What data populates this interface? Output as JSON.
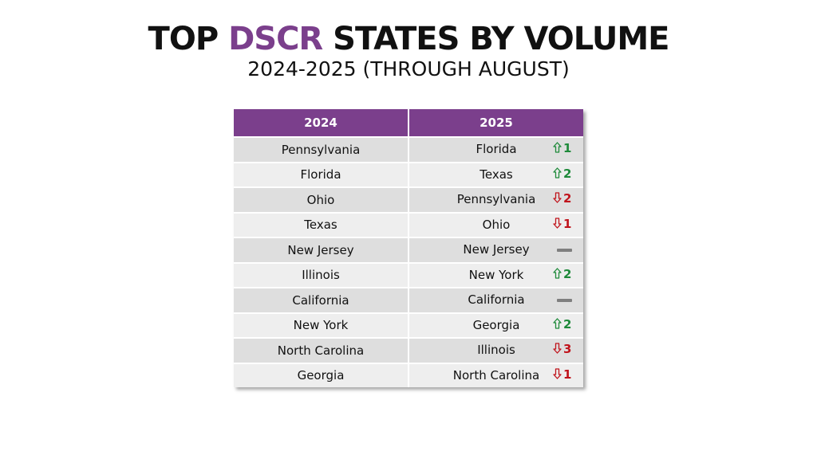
{
  "title": {
    "before": "TOP ",
    "accent": "DSCR",
    "after": " STATES BY VOLUME",
    "accent_color": "#7b3f8c"
  },
  "subtitle": "2024-2025 (THROUGH AUGUST)",
  "chart_data": {
    "type": "table",
    "columns": [
      "2024",
      "2025"
    ],
    "rows": [
      {
        "y2024": "Pennsylvania",
        "y2025": "Florida",
        "direction": "up",
        "change": "1"
      },
      {
        "y2024": "Florida",
        "y2025": "Texas",
        "direction": "up",
        "change": "2"
      },
      {
        "y2024": "Ohio",
        "y2025": "Pennsylvania",
        "direction": "down",
        "change": "2"
      },
      {
        "y2024": "Texas",
        "y2025": "Ohio",
        "direction": "down",
        "change": "1"
      },
      {
        "y2024": "New Jersey",
        "y2025": "New Jersey",
        "direction": "same",
        "change": ""
      },
      {
        "y2024": "Illinois",
        "y2025": "New York",
        "direction": "up",
        "change": "2"
      },
      {
        "y2024": "California",
        "y2025": "California",
        "direction": "same",
        "change": ""
      },
      {
        "y2024": "New York",
        "y2025": "Georgia",
        "direction": "up",
        "change": "2"
      },
      {
        "y2024": "North Carolina",
        "y2025": "Illinois",
        "direction": "down",
        "change": "3"
      },
      {
        "y2024": "Georgia",
        "y2025": "North Carolina",
        "direction": "down",
        "change": "1"
      }
    ],
    "colors": {
      "header": "#7b3f8c",
      "up": "#1e8a3a",
      "down": "#c0141c",
      "same": "#7f7f7f"
    },
    "icons": {
      "up": "up-arrow-icon",
      "down": "down-arrow-icon",
      "same": "dash-icon"
    }
  }
}
